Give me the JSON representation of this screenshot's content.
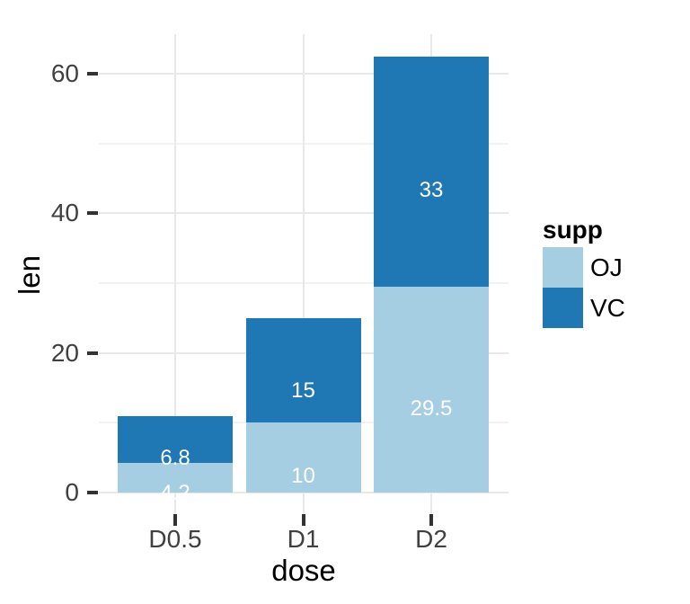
{
  "chart_data": {
    "type": "bar",
    "stacked": true,
    "title": "",
    "xlabel": "dose",
    "ylabel": "len",
    "categories": [
      "D0.5",
      "D1",
      "D2"
    ],
    "series": [
      {
        "name": "OJ",
        "color": "#A6CEE3",
        "values": [
          4.2,
          10,
          29.5
        ],
        "label_y": [
          -0.15,
          2.3,
          12.0
        ]
      },
      {
        "name": "VC",
        "color": "#1F78B4",
        "values": [
          6.8,
          15,
          33
        ],
        "label_y": [
          4.9,
          14.5,
          43.3
        ]
      }
    ],
    "value_labels": [
      "4.2",
      "10",
      "29.5",
      "6.8",
      "15",
      "33"
    ],
    "value_label_color": "#FFFFFF",
    "y_ticks": [
      0,
      20,
      40,
      60
    ],
    "y_minor_ticks": [
      10,
      30,
      50
    ],
    "ylim": [
      -3.1,
      65.7
    ],
    "grid": {
      "show": true,
      "major_color": "#E8E8E8",
      "minor_color": "#F2F2F2"
    },
    "legend": {
      "title": "supp",
      "position": "right",
      "items": [
        {
          "label": "OJ",
          "color": "#A6CEE3"
        },
        {
          "label": "VC",
          "color": "#1F78B4"
        }
      ]
    },
    "colors": {
      "background": "#FFFFFF",
      "tick_mark": "#333333",
      "axis_text": "#404040",
      "axis_title": "#000000"
    }
  }
}
